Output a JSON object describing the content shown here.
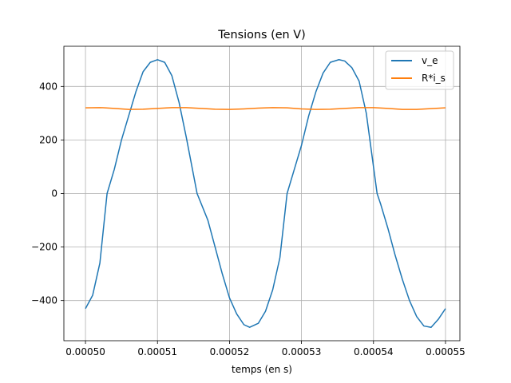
{
  "chart_data": {
    "type": "line",
    "title": "Tensions (en V)",
    "xlabel": "temps (en s)",
    "ylabel": "",
    "xlim": [
      0.000497,
      0.000552
    ],
    "ylim": [
      -550,
      550
    ],
    "x_ticks": [
      0.0005,
      0.00051,
      0.00052,
      0.00053,
      0.00054,
      0.00055
    ],
    "x_tick_labels": [
      "0.00050",
      "0.00051",
      "0.00052",
      "0.00053",
      "0.00054",
      "0.00055"
    ],
    "y_ticks": [
      -400,
      -200,
      0,
      200,
      400
    ],
    "y_tick_labels": [
      "−400",
      "−200",
      "0",
      "200",
      "400"
    ],
    "grid": true,
    "legend_position": "upper right",
    "series": [
      {
        "name": "v_e",
        "color": "#1f77b4",
        "points": [
          [
            0.0005,
            -430
          ],
          [
            0.000501,
            -380
          ],
          [
            0.000502,
            -260
          ],
          [
            0.000503,
            0
          ],
          [
            0.000504,
            90
          ],
          [
            0.000505,
            200
          ],
          [
            0.000506,
            290
          ],
          [
            0.000507,
            380
          ],
          [
            0.000508,
            455
          ],
          [
            0.000509,
            490
          ],
          [
            0.00051,
            500
          ],
          [
            0.000511,
            490
          ],
          [
            0.000512,
            440
          ],
          [
            0.000513,
            340
          ],
          [
            0.000514,
            210
          ],
          [
            0.0005155,
            0
          ],
          [
            0.000517,
            -100
          ],
          [
            0.000518,
            -200
          ],
          [
            0.000519,
            -300
          ],
          [
            0.00052,
            -390
          ],
          [
            0.000521,
            -450
          ],
          [
            0.000522,
            -490
          ],
          [
            0.0005228,
            -500
          ],
          [
            0.000524,
            -485
          ],
          [
            0.000525,
            -440
          ],
          [
            0.000526,
            -360
          ],
          [
            0.000527,
            -240
          ],
          [
            0.000528,
            0
          ],
          [
            0.000529,
            90
          ],
          [
            0.00053,
            180
          ],
          [
            0.000531,
            290
          ],
          [
            0.000532,
            380
          ],
          [
            0.000533,
            450
          ],
          [
            0.000534,
            490
          ],
          [
            0.0005352,
            500
          ],
          [
            0.000536,
            495
          ],
          [
            0.000537,
            470
          ],
          [
            0.000538,
            420
          ],
          [
            0.000539,
            300
          ],
          [
            0.0005405,
            0
          ],
          [
            0.000541,
            -40
          ],
          [
            0.000542,
            -130
          ],
          [
            0.000543,
            -230
          ],
          [
            0.000544,
            -320
          ],
          [
            0.000545,
            -400
          ],
          [
            0.000546,
            -460
          ],
          [
            0.000547,
            -495
          ],
          [
            0.000548,
            -500
          ],
          [
            0.000549,
            -470
          ],
          [
            0.00055,
            -430
          ]
        ]
      },
      {
        "name": "R*i_s",
        "color": "#ff7f0e",
        "points": [
          [
            0.0005,
            320
          ],
          [
            0.000502,
            321
          ],
          [
            0.000504,
            318
          ],
          [
            0.000506,
            314
          ],
          [
            0.000508,
            315
          ],
          [
            0.00051,
            318
          ],
          [
            0.000512,
            321
          ],
          [
            0.000514,
            321
          ],
          [
            0.000516,
            318
          ],
          [
            0.000518,
            315
          ],
          [
            0.00052,
            314
          ],
          [
            0.000522,
            316
          ],
          [
            0.000524,
            319
          ],
          [
            0.000526,
            321
          ],
          [
            0.000528,
            320
          ],
          [
            0.00053,
            316
          ],
          [
            0.000532,
            314
          ],
          [
            0.000534,
            315
          ],
          [
            0.000536,
            318
          ],
          [
            0.000538,
            321
          ],
          [
            0.00054,
            321
          ],
          [
            0.000542,
            318
          ],
          [
            0.000544,
            314
          ],
          [
            0.000546,
            314
          ],
          [
            0.000548,
            317
          ],
          [
            0.00055,
            320
          ]
        ]
      }
    ]
  }
}
